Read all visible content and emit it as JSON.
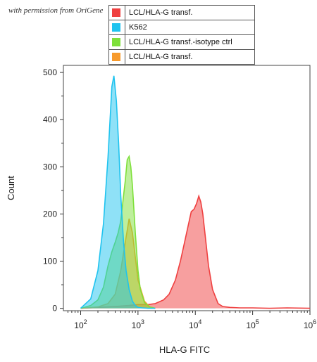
{
  "credit": "with permission from OriGene",
  "legend": [
    {
      "label": "LCL/HLA-G transf.",
      "color": "#ef4040"
    },
    {
      "label": "K562",
      "color": "#1fc3ef"
    },
    {
      "label": "LCL/HLA-G transf.-isotype ctrl",
      "color": "#7ee03a"
    },
    {
      "label": "LCL/HLA-G transf.",
      "color": "#f79a2c"
    }
  ],
  "chart_data": {
    "type": "area",
    "xlabel": "HLA-G FITC",
    "ylabel": "Count",
    "xscale": "log",
    "xlim": [
      50,
      1000000
    ],
    "ylim": [
      -5,
      515
    ],
    "yticks": [
      0,
      100,
      200,
      300,
      400,
      500
    ],
    "xticks": [
      {
        "value": 100,
        "base": "10",
        "exp": "2"
      },
      {
        "value": 1000,
        "base": "10",
        "exp": "3"
      },
      {
        "value": 10000,
        "base": "10",
        "exp": "4"
      },
      {
        "value": 100000,
        "base": "10",
        "exp": "5"
      },
      {
        "value": 1000000,
        "base": "10",
        "exp": "6"
      }
    ],
    "series": [
      {
        "name": "LCL/HLA-G transf.",
        "color": "#ef4040",
        "x": [
          100,
          200,
          400,
          700,
          1000,
          1500,
          2000,
          2800,
          3500,
          4500,
          5500,
          6500,
          7500,
          8500,
          9500,
          10500,
          11500,
          12500,
          13500,
          15000,
          17000,
          20000,
          25000,
          30000,
          40000,
          60000,
          100000,
          200000,
          400000,
          1000000
        ],
        "y": [
          0,
          2,
          4,
          6,
          8,
          8,
          10,
          18,
          30,
          60,
          100,
          140,
          175,
          205,
          210,
          222,
          238,
          225,
          200,
          150,
          90,
          40,
          10,
          4,
          2,
          1,
          1,
          0,
          1,
          0
        ]
      },
      {
        "name": "LCL/HLA-G transf.",
        "color": "#f79a2c",
        "x": [
          100,
          200,
          300,
          400,
          500,
          600,
          700,
          800,
          1000,
          1300,
          1600,
          2000
        ],
        "y": [
          0,
          3,
          10,
          30,
          80,
          140,
          190,
          160,
          60,
          15,
          3,
          0
        ]
      },
      {
        "name": "LCL/HLA-G transf.-isotype ctrl",
        "color": "#7ee03a",
        "x": [
          100,
          150,
          200,
          250,
          300,
          350,
          400,
          450,
          500,
          550,
          600,
          650,
          700,
          750,
          800,
          900,
          1000,
          1100,
          1300,
          1600,
          2000
        ],
        "y": [
          0,
          6,
          18,
          45,
          90,
          120,
          140,
          160,
          185,
          230,
          270,
          315,
          322,
          300,
          260,
          160,
          80,
          40,
          12,
          3,
          0
        ]
      },
      {
        "name": "K562",
        "color": "#1fc3ef",
        "x": [
          100,
          150,
          200,
          250,
          300,
          350,
          380,
          420,
          460,
          500,
          560,
          620,
          700,
          800,
          900,
          1000,
          1200,
          1500,
          2000
        ],
        "y": [
          0,
          20,
          80,
          180,
          320,
          470,
          493,
          440,
          350,
          240,
          140,
          80,
          40,
          15,
          6,
          2,
          1,
          0,
          0
        ]
      }
    ]
  }
}
